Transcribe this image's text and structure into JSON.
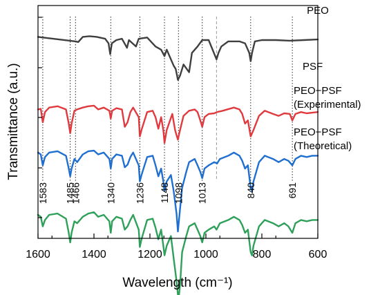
{
  "chart_data": {
    "type": "line",
    "xlabel": "Wavelength (cm⁻¹)",
    "ylabel": "Transmittance (a.u.)",
    "xlim": [
      1600,
      600
    ],
    "x_reversed": true,
    "x_ticks": [
      1600,
      1400,
      1200,
      1000,
      800,
      600
    ],
    "y_ticks_labeled": false,
    "grid": false,
    "series": [
      {
        "name": "PEO",
        "labels": [
          "PEO"
        ],
        "color": "#3f3f3f",
        "points": [
          [
            1600,
            2.05
          ],
          [
            1466,
            1.98
          ],
          [
            1456,
            1.97
          ],
          [
            1440,
            2.05
          ],
          [
            1415,
            2.06
          ],
          [
            1390,
            2.05
          ],
          [
            1360,
            2.02
          ],
          [
            1348,
            1.95
          ],
          [
            1342,
            1.78
          ],
          [
            1336,
            1.95
          ],
          [
            1320,
            2.0
          ],
          [
            1300,
            2.02
          ],
          [
            1282,
            1.88
          ],
          [
            1275,
            2.0
          ],
          [
            1250,
            1.9
          ],
          [
            1240,
            2.02
          ],
          [
            1210,
            2.04
          ],
          [
            1180,
            1.9
          ],
          [
            1160,
            1.85
          ],
          [
            1148,
            1.75
          ],
          [
            1140,
            1.85
          ],
          [
            1115,
            1.6
          ],
          [
            1108,
            1.55
          ],
          [
            1100,
            1.38
          ],
          [
            1092,
            1.45
          ],
          [
            1080,
            1.62
          ],
          [
            1060,
            1.5
          ],
          [
            1050,
            1.8
          ],
          [
            1030,
            1.9
          ],
          [
            1013,
            2.0
          ],
          [
            990,
            2.0
          ],
          [
            962,
            1.7
          ],
          [
            955,
            1.8
          ],
          [
            945,
            1.9
          ],
          [
            920,
            1.98
          ],
          [
            880,
            1.98
          ],
          [
            860,
            1.95
          ],
          [
            845,
            1.8
          ],
          [
            840,
            1.67
          ],
          [
            835,
            1.8
          ],
          [
            825,
            1.98
          ],
          [
            800,
            2.0
          ],
          [
            750,
            2.0
          ],
          [
            700,
            1.99
          ],
          [
            650,
            2.0
          ],
          [
            600,
            2.01
          ]
        ]
      },
      {
        "name": "PSF",
        "labels": [
          "PSF"
        ],
        "color": "#e0393e",
        "points": [
          [
            1600,
            0.92
          ],
          [
            1590,
            0.93
          ],
          [
            1583,
            0.72
          ],
          [
            1575,
            0.88
          ],
          [
            1560,
            0.95
          ],
          [
            1530,
            0.97
          ],
          [
            1500,
            0.92
          ],
          [
            1490,
            0.7
          ],
          [
            1485,
            0.55
          ],
          [
            1480,
            0.7
          ],
          [
            1470,
            0.9
          ],
          [
            1460,
            0.92
          ],
          [
            1440,
            0.95
          ],
          [
            1420,
            0.97
          ],
          [
            1400,
            0.98
          ],
          [
            1385,
            0.92
          ],
          [
            1365,
            0.95
          ],
          [
            1345,
            0.9
          ],
          [
            1340,
            0.78
          ],
          [
            1335,
            0.9
          ],
          [
            1320,
            0.94
          ],
          [
            1300,
            0.92
          ],
          [
            1290,
            0.65
          ],
          [
            1280,
            0.72
          ],
          [
            1270,
            0.88
          ],
          [
            1260,
            0.95
          ],
          [
            1240,
            0.8
          ],
          [
            1236,
            0.5
          ],
          [
            1230,
            0.6
          ],
          [
            1210,
            0.88
          ],
          [
            1190,
            0.9
          ],
          [
            1180,
            0.8
          ],
          [
            1170,
            0.62
          ],
          [
            1160,
            0.8
          ],
          [
            1152,
            0.6
          ],
          [
            1148,
            0.4
          ],
          [
            1140,
            0.6
          ],
          [
            1120,
            0.85
          ],
          [
            1110,
            0.6
          ],
          [
            1105,
            0.52
          ],
          [
            1100,
            0.45
          ],
          [
            1095,
            0.55
          ],
          [
            1080,
            0.82
          ],
          [
            1060,
            0.9
          ],
          [
            1040,
            0.92
          ],
          [
            1030,
            0.88
          ],
          [
            1020,
            0.75
          ],
          [
            1013,
            0.65
          ],
          [
            1005,
            0.8
          ],
          [
            990,
            0.85
          ],
          [
            970,
            0.86
          ],
          [
            960,
            0.88
          ],
          [
            940,
            0.9
          ],
          [
            900,
            0.95
          ],
          [
            880,
            0.92
          ],
          [
            870,
            0.85
          ],
          [
            860,
            0.7
          ],
          [
            850,
            0.75
          ],
          [
            840,
            0.5
          ],
          [
            830,
            0.6
          ],
          [
            810,
            0.82
          ],
          [
            790,
            0.9
          ],
          [
            760,
            0.85
          ],
          [
            740,
            0.82
          ],
          [
            720,
            0.86
          ],
          [
            700,
            0.85
          ],
          [
            691,
            0.75
          ],
          [
            680,
            0.85
          ],
          [
            660,
            0.88
          ],
          [
            640,
            0.86
          ],
          [
            620,
            0.87
          ],
          [
            600,
            0.88
          ]
        ]
      },
      {
        "name": "PEO−PSF (Experimental)",
        "labels": [
          "PEO−PSF",
          "(Experimental)"
        ],
        "color": "#1f6fd0",
        "points": [
          [
            1600,
            0.25
          ],
          [
            1590,
            0.22
          ],
          [
            1583,
            0.05
          ],
          [
            1575,
            0.18
          ],
          [
            1560,
            0.25
          ],
          [
            1530,
            0.27
          ],
          [
            1500,
            0.2
          ],
          [
            1490,
            0.0
          ],
          [
            1485,
            -0.12
          ],
          [
            1480,
            0.0
          ],
          [
            1470,
            0.15
          ],
          [
            1460,
            0.1
          ],
          [
            1440,
            0.22
          ],
          [
            1420,
            0.27
          ],
          [
            1400,
            0.28
          ],
          [
            1385,
            0.22
          ],
          [
            1365,
            0.25
          ],
          [
            1345,
            0.15
          ],
          [
            1340,
            0.0
          ],
          [
            1335,
            0.15
          ],
          [
            1320,
            0.22
          ],
          [
            1300,
            0.2
          ],
          [
            1290,
            0.02
          ],
          [
            1280,
            0.06
          ],
          [
            1270,
            0.18
          ],
          [
            1260,
            0.25
          ],
          [
            1240,
            0.05
          ],
          [
            1236,
            -0.2
          ],
          [
            1230,
            -0.1
          ],
          [
            1210,
            0.18
          ],
          [
            1190,
            0.2
          ],
          [
            1180,
            0.05
          ],
          [
            1170,
            -0.12
          ],
          [
            1160,
            0.0
          ],
          [
            1152,
            -0.2
          ],
          [
            1148,
            -0.35
          ],
          [
            1140,
            -0.2
          ],
          [
            1125,
            -0.1
          ],
          [
            1115,
            -0.35
          ],
          [
            1105,
            -0.7
          ],
          [
            1100,
            -0.98
          ],
          [
            1095,
            -0.75
          ],
          [
            1085,
            -0.3
          ],
          [
            1070,
            -0.05
          ],
          [
            1060,
            0.1
          ],
          [
            1040,
            0.15
          ],
          [
            1030,
            0.05
          ],
          [
            1020,
            -0.05
          ],
          [
            1013,
            -0.15
          ],
          [
            1005,
            0.0
          ],
          [
            990,
            0.05
          ],
          [
            970,
            0.1
          ],
          [
            960,
            0.08
          ],
          [
            950,
            0.15
          ],
          [
            920,
            0.2
          ],
          [
            900,
            0.25
          ],
          [
            880,
            0.2
          ],
          [
            870,
            0.12
          ],
          [
            860,
            0.0
          ],
          [
            850,
            0.05
          ],
          [
            840,
            -0.3
          ],
          [
            835,
            -0.35
          ],
          [
            830,
            -0.2
          ],
          [
            810,
            0.1
          ],
          [
            790,
            0.2
          ],
          [
            760,
            0.15
          ],
          [
            740,
            0.1
          ],
          [
            720,
            0.15
          ],
          [
            705,
            0.12
          ],
          [
            691,
            0.05
          ],
          [
            680,
            0.15
          ],
          [
            660,
            0.2
          ],
          [
            640,
            0.18
          ],
          [
            620,
            0.2
          ],
          [
            600,
            0.2
          ]
        ]
      },
      {
        "name": "PEO−PSF (Theoretical)",
        "labels": [
          "PEO−PSF",
          "(Theoretical)"
        ],
        "color": "#2ea05a",
        "points": [
          [
            1600,
            -0.72
          ],
          [
            1590,
            -0.75
          ],
          [
            1583,
            -0.9
          ],
          [
            1575,
            -0.8
          ],
          [
            1560,
            -0.72
          ],
          [
            1530,
            -0.7
          ],
          [
            1500,
            -0.78
          ],
          [
            1490,
            -1.0
          ],
          [
            1485,
            -1.15
          ],
          [
            1480,
            -1.0
          ],
          [
            1470,
            -0.82
          ],
          [
            1460,
            -0.85
          ],
          [
            1440,
            -0.75
          ],
          [
            1420,
            -0.7
          ],
          [
            1400,
            -0.68
          ],
          [
            1385,
            -0.75
          ],
          [
            1365,
            -0.72
          ],
          [
            1345,
            -0.82
          ],
          [
            1340,
            -1.0
          ],
          [
            1335,
            -0.82
          ],
          [
            1320,
            -0.75
          ],
          [
            1300,
            -0.78
          ],
          [
            1290,
            -0.95
          ],
          [
            1280,
            -0.9
          ],
          [
            1270,
            -0.8
          ],
          [
            1260,
            -0.72
          ],
          [
            1240,
            -0.95
          ],
          [
            1236,
            -1.22
          ],
          [
            1230,
            -1.1
          ],
          [
            1210,
            -0.8
          ],
          [
            1190,
            -0.78
          ],
          [
            1180,
            -0.92
          ],
          [
            1170,
            -1.1
          ],
          [
            1160,
            -0.95
          ],
          [
            1152,
            -1.2
          ],
          [
            1148,
            -1.35
          ],
          [
            1140,
            -1.2
          ],
          [
            1125,
            -1.05
          ],
          [
            1115,
            -1.4
          ],
          [
            1105,
            -1.75
          ],
          [
            1098,
            -2.05
          ],
          [
            1092,
            -1.8
          ],
          [
            1085,
            -1.3
          ],
          [
            1070,
            -1.05
          ],
          [
            1060,
            -0.9
          ],
          [
            1040,
            -0.85
          ],
          [
            1030,
            -0.95
          ],
          [
            1020,
            -1.05
          ],
          [
            1013,
            -1.15
          ],
          [
            1005,
            -1.0
          ],
          [
            990,
            -0.95
          ],
          [
            970,
            -0.9
          ],
          [
            962,
            -0.95
          ],
          [
            950,
            -0.85
          ],
          [
            920,
            -0.8
          ],
          [
            900,
            -0.75
          ],
          [
            880,
            -0.8
          ],
          [
            870,
            -0.88
          ],
          [
            860,
            -1.0
          ],
          [
            850,
            -0.95
          ],
          [
            840,
            -1.3
          ],
          [
            835,
            -1.35
          ],
          [
            830,
            -1.2
          ],
          [
            810,
            -0.9
          ],
          [
            790,
            -0.8
          ],
          [
            760,
            -0.85
          ],
          [
            740,
            -0.9
          ],
          [
            720,
            -0.85
          ],
          [
            705,
            -0.9
          ],
          [
            691,
            -1.0
          ],
          [
            680,
            -0.85
          ],
          [
            660,
            -0.8
          ],
          [
            640,
            -0.82
          ],
          [
            620,
            -0.8
          ],
          [
            600,
            -0.8
          ]
        ]
      }
    ],
    "reference_lines": [
      {
        "x": 1583,
        "label": "1583",
        "style": "dotted"
      },
      {
        "x": 1485,
        "label": "1485",
        "style": "dotted"
      },
      {
        "x": 1466,
        "label": "1466",
        "style": "dotted"
      },
      {
        "x": 1340,
        "label": "1340",
        "style": "dotted"
      },
      {
        "x": 1236,
        "label": "1236",
        "style": "dotted"
      },
      {
        "x": 1148,
        "label": "1148",
        "style": "dotted"
      },
      {
        "x": 1098,
        "label": "1098",
        "style": "dotted"
      },
      {
        "x": 1013,
        "label": "1013",
        "style": "dotted"
      },
      {
        "x": 962,
        "label": "",
        "style": "dashed-gray"
      },
      {
        "x": 840,
        "label": "840",
        "style": "dotted"
      },
      {
        "x": 691,
        "label": "691",
        "style": "dotted"
      }
    ]
  }
}
